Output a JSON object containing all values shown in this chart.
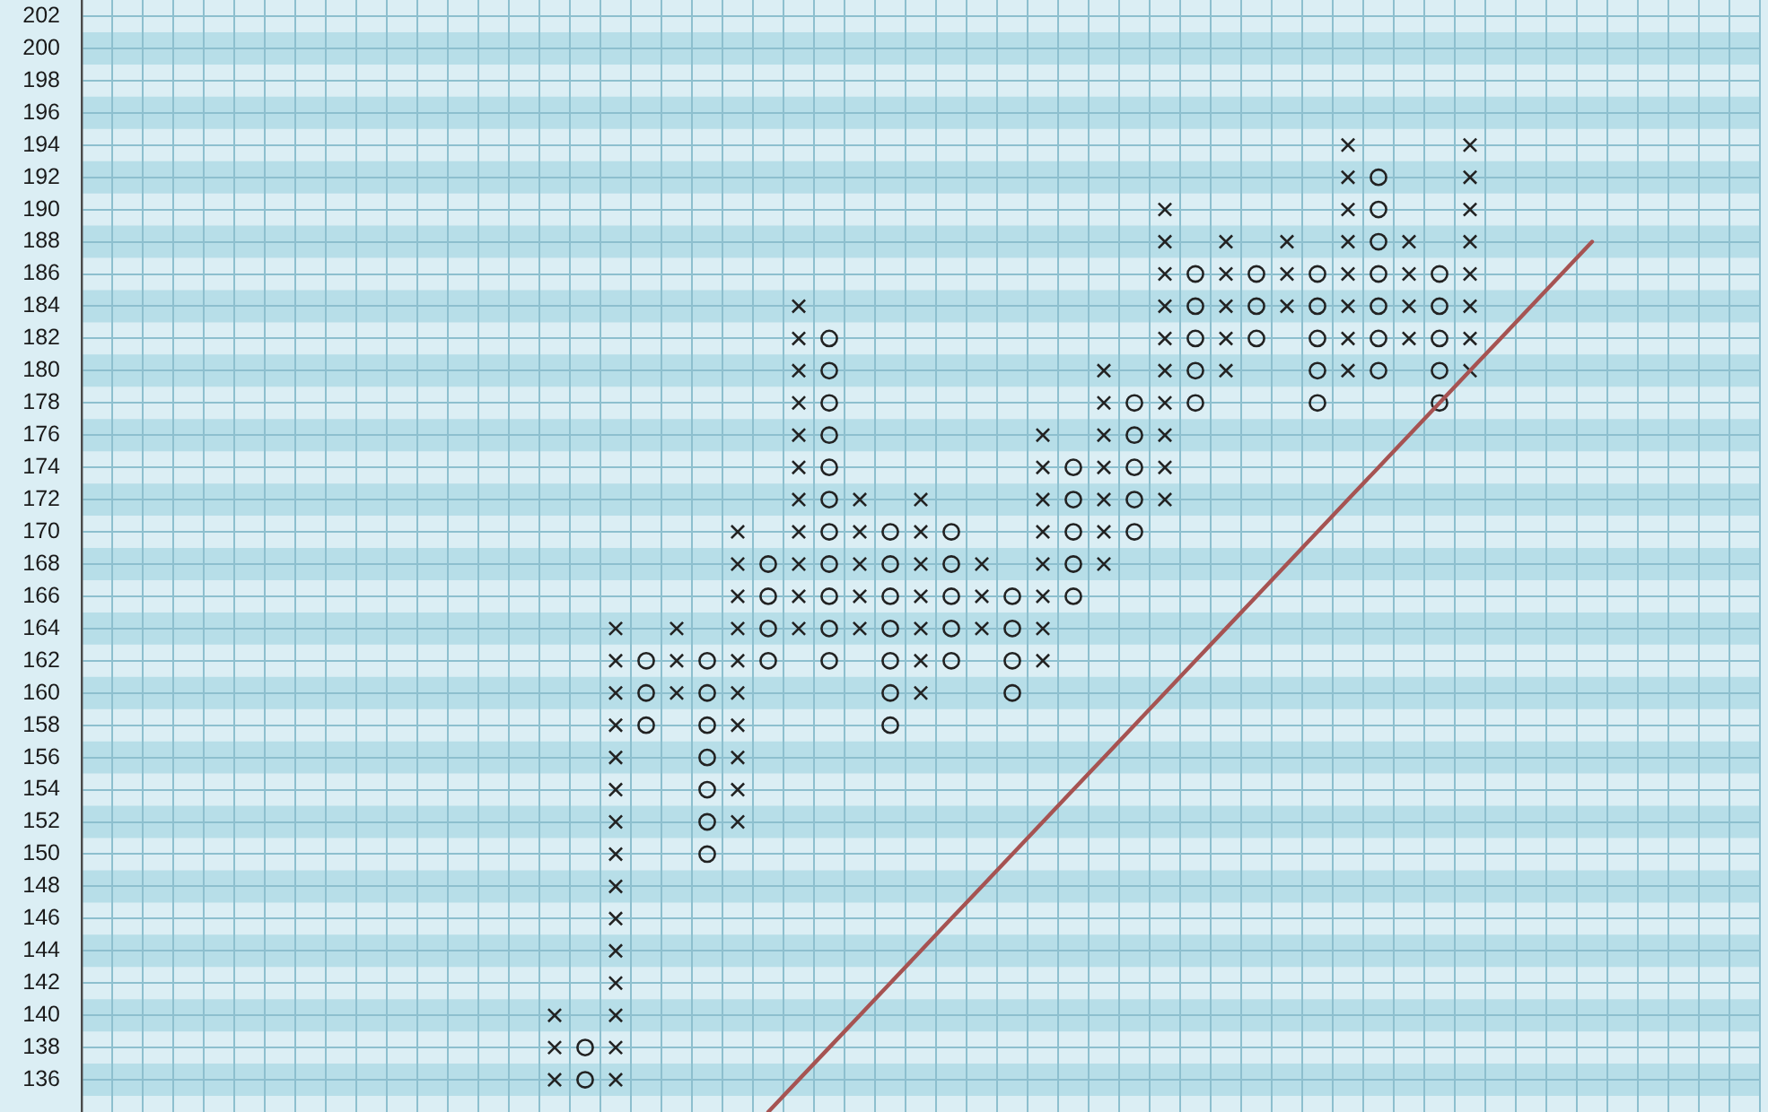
{
  "chart_data": {
    "type": "scatter",
    "categories": [
      null,
      null,
      null,
      null,
      null,
      null,
      null,
      null,
      null,
      null,
      null,
      null,
      null,
      null,
      null,
      null,
      null,
      null,
      null,
      null,
      null,
      null,
      null,
      null,
      null,
      null,
      null,
      null,
      null,
      null,
      null,
      null,
      null,
      null,
      null,
      null,
      null,
      null,
      null,
      null,
      null,
      null,
      null,
      null,
      null,
      null,
      null,
      null,
      null,
      null,
      null,
      null,
      null,
      null,
      null
    ],
    "series": [
      {
        "color": "#222222",
        "marker": "cross",
        "values": [
          null,
          null,
          null,
          null,
          null,
          null,
          null,
          null,
          null,
          null,
          null,
          null,
          null,
          null,
          null,
          136,
          null,
          136,
          null,
          160,
          null,
          152,
          null,
          164,
          null,
          164,
          null,
          160,
          null,
          164,
          null,
          162,
          null,
          168,
          null,
          172,
          null,
          180,
          null,
          184,
          null,
          180,
          null,
          182,
          null,
          180,
          null,
          null,
          null,
          null,
          null,
          null,
          null,
          null,
          null
        ]
      },
      {
        "color": "#222222",
        "marker": "cross",
        "values": [
          null,
          null,
          null,
          null,
          null,
          null,
          null,
          null,
          null,
          null,
          null,
          null,
          null,
          null,
          null,
          138,
          null,
          138,
          null,
          162,
          null,
          154,
          null,
          166,
          null,
          166,
          null,
          162,
          null,
          166,
          null,
          164,
          null,
          170,
          null,
          174,
          null,
          182,
          null,
          186,
          null,
          182,
          null,
          184,
          null,
          182,
          null,
          null,
          null,
          null,
          null,
          null,
          null,
          null,
          null
        ]
      },
      {
        "color": "#222222",
        "marker": "cross",
        "values": [
          null,
          null,
          null,
          null,
          null,
          null,
          null,
          null,
          null,
          null,
          null,
          null,
          null,
          null,
          null,
          140,
          null,
          140,
          null,
          164,
          null,
          156,
          null,
          168,
          null,
          168,
          null,
          164,
          null,
          168,
          null,
          166,
          null,
          172,
          null,
          176,
          null,
          184,
          null,
          188,
          null,
          184,
          null,
          186,
          null,
          184,
          null,
          null,
          null,
          null,
          null,
          null,
          null,
          null,
          null
        ]
      },
      {
        "color": "#222222",
        "marker": "cross",
        "values": [
          null,
          null,
          null,
          null,
          null,
          null,
          null,
          null,
          null,
          null,
          null,
          null,
          null,
          null,
          null,
          null,
          null,
          142,
          null,
          null,
          null,
          158,
          null,
          170,
          null,
          170,
          null,
          166,
          null,
          null,
          null,
          168,
          null,
          174,
          null,
          178,
          null,
          186,
          null,
          null,
          null,
          186,
          null,
          188,
          null,
          186,
          null,
          null,
          null,
          null,
          null,
          null,
          null,
          null,
          null
        ]
      },
      {
        "color": "#222222",
        "marker": "cross",
        "values": [
          null,
          null,
          null,
          null,
          null,
          null,
          null,
          null,
          null,
          null,
          null,
          null,
          null,
          null,
          null,
          null,
          null,
          144,
          null,
          null,
          null,
          160,
          null,
          172,
          null,
          172,
          null,
          168,
          null,
          null,
          null,
          170,
          null,
          176,
          null,
          180,
          null,
          188,
          null,
          null,
          null,
          188,
          null,
          null,
          null,
          188,
          null,
          null,
          null,
          null,
          null,
          null,
          null,
          null,
          null
        ]
      },
      {
        "color": "#222222",
        "marker": "cross",
        "values": [
          null,
          null,
          null,
          null,
          null,
          null,
          null,
          null,
          null,
          null,
          null,
          null,
          null,
          null,
          null,
          null,
          null,
          146,
          null,
          null,
          null,
          162,
          null,
          174,
          null,
          null,
          null,
          170,
          null,
          null,
          null,
          172,
          null,
          178,
          null,
          182,
          null,
          null,
          null,
          null,
          null,
          190,
          null,
          null,
          null,
          190,
          null,
          null,
          null,
          null,
          null,
          null,
          null,
          null,
          null
        ]
      },
      {
        "color": "#222222",
        "marker": "cross",
        "values": [
          null,
          null,
          null,
          null,
          null,
          null,
          null,
          null,
          null,
          null,
          null,
          null,
          null,
          null,
          null,
          null,
          null,
          148,
          null,
          null,
          null,
          164,
          null,
          176,
          null,
          null,
          null,
          172,
          null,
          null,
          null,
          174,
          null,
          180,
          null,
          184,
          null,
          null,
          null,
          null,
          null,
          192,
          null,
          null,
          null,
          192,
          null,
          null,
          null,
          null,
          null,
          null,
          null,
          null,
          null
        ]
      },
      {
        "color": "#222222",
        "marker": "cross",
        "values": [
          null,
          null,
          null,
          null,
          null,
          null,
          null,
          null,
          null,
          null,
          null,
          null,
          null,
          null,
          null,
          null,
          null,
          150,
          null,
          null,
          null,
          166,
          null,
          178,
          null,
          null,
          null,
          null,
          null,
          null,
          null,
          176,
          null,
          null,
          null,
          186,
          null,
          null,
          null,
          null,
          null,
          194,
          null,
          null,
          null,
          194,
          null,
          null,
          null,
          null,
          null,
          null,
          null,
          null,
          null
        ]
      },
      {
        "color": "#222222",
        "marker": "cross",
        "values": [
          null,
          null,
          null,
          null,
          null,
          null,
          null,
          null,
          null,
          null,
          null,
          null,
          null,
          null,
          null,
          null,
          null,
          152,
          null,
          null,
          null,
          168,
          null,
          180,
          null,
          null,
          null,
          null,
          null,
          null,
          null,
          null,
          null,
          null,
          null,
          188,
          null,
          null,
          null,
          null,
          null,
          null,
          null,
          null,
          null,
          null,
          null,
          null,
          null,
          null,
          null,
          null,
          null,
          null,
          null
        ]
      },
      {
        "color": "#222222",
        "marker": "cross",
        "values": [
          null,
          null,
          null,
          null,
          null,
          null,
          null,
          null,
          null,
          null,
          null,
          null,
          null,
          null,
          null,
          null,
          null,
          154,
          null,
          null,
          null,
          170,
          null,
          182,
          null,
          null,
          null,
          null,
          null,
          null,
          null,
          null,
          null,
          null,
          null,
          190,
          null,
          null,
          null,
          null,
          null,
          null,
          null,
          null,
          null,
          null,
          null,
          null,
          null,
          null,
          null,
          null,
          null,
          null,
          null
        ]
      },
      {
        "color": "#222222",
        "marker": "cross",
        "values": [
          null,
          null,
          null,
          null,
          null,
          null,
          null,
          null,
          null,
          null,
          null,
          null,
          null,
          null,
          null,
          null,
          null,
          156,
          null,
          null,
          null,
          null,
          null,
          184,
          null,
          null,
          null,
          null,
          null,
          null,
          null,
          null,
          null,
          null,
          null,
          null,
          null,
          null,
          null,
          null,
          null,
          null,
          null,
          null,
          null,
          null,
          null,
          null,
          null,
          null,
          null,
          null,
          null,
          null,
          null
        ]
      },
      {
        "color": "#222222",
        "marker": "cross",
        "values": [
          null,
          null,
          null,
          null,
          null,
          null,
          null,
          null,
          null,
          null,
          null,
          null,
          null,
          null,
          null,
          null,
          null,
          158,
          null,
          null,
          null,
          null,
          null,
          null,
          null,
          null,
          null,
          null,
          null,
          null,
          null,
          null,
          null,
          null,
          null,
          null,
          null,
          null,
          null,
          null,
          null,
          null,
          null,
          null,
          null,
          null,
          null,
          null,
          null,
          null,
          null,
          null,
          null,
          null,
          null
        ]
      },
      {
        "color": "#222222",
        "marker": "cross",
        "values": [
          null,
          null,
          null,
          null,
          null,
          null,
          null,
          null,
          null,
          null,
          null,
          null,
          null,
          null,
          null,
          null,
          null,
          160,
          null,
          null,
          null,
          null,
          null,
          null,
          null,
          null,
          null,
          null,
          null,
          null,
          null,
          null,
          null,
          null,
          null,
          null,
          null,
          null,
          null,
          null,
          null,
          null,
          null,
          null,
          null,
          null,
          null,
          null,
          null,
          null,
          null,
          null,
          null,
          null,
          null
        ]
      },
      {
        "color": "#222222",
        "marker": "cross",
        "values": [
          null,
          null,
          null,
          null,
          null,
          null,
          null,
          null,
          null,
          null,
          null,
          null,
          null,
          null,
          null,
          null,
          null,
          162,
          null,
          null,
          null,
          null,
          null,
          null,
          null,
          null,
          null,
          null,
          null,
          null,
          null,
          null,
          null,
          null,
          null,
          null,
          null,
          null,
          null,
          null,
          null,
          null,
          null,
          null,
          null,
          null,
          null,
          null,
          null,
          null,
          null,
          null,
          null,
          null,
          null
        ]
      },
      {
        "color": "#222222",
        "marker": "cross",
        "values": [
          null,
          null,
          null,
          null,
          null,
          null,
          null,
          null,
          null,
          null,
          null,
          null,
          null,
          null,
          null,
          null,
          null,
          164,
          null,
          null,
          null,
          null,
          null,
          null,
          null,
          null,
          null,
          null,
          null,
          null,
          null,
          null,
          null,
          null,
          null,
          null,
          null,
          null,
          null,
          null,
          null,
          null,
          null,
          null,
          null,
          null,
          null,
          null,
          null,
          null,
          null,
          null,
          null,
          null,
          null
        ]
      },
      {
        "color": "#222222",
        "marker": "circle",
        "values": [
          null,
          null,
          null,
          null,
          null,
          null,
          null,
          null,
          null,
          null,
          null,
          null,
          null,
          null,
          null,
          null,
          136,
          null,
          158,
          null,
          150,
          null,
          162,
          null,
          162,
          null,
          158,
          null,
          162,
          null,
          160,
          null,
          166,
          null,
          170,
          null,
          178,
          null,
          182,
          null,
          178,
          null,
          180,
          null,
          178,
          null,
          null,
          null,
          null,
          null,
          null,
          null,
          null,
          null,
          null
        ]
      },
      {
        "color": "#222222",
        "marker": "circle",
        "values": [
          null,
          null,
          null,
          null,
          null,
          null,
          null,
          null,
          null,
          null,
          null,
          null,
          null,
          null,
          null,
          null,
          138,
          null,
          160,
          null,
          152,
          null,
          164,
          null,
          164,
          null,
          160,
          null,
          164,
          null,
          162,
          null,
          168,
          null,
          172,
          null,
          180,
          null,
          184,
          null,
          180,
          null,
          182,
          null,
          180,
          null,
          null,
          null,
          null,
          null,
          null,
          null,
          null,
          null,
          null
        ]
      },
      {
        "color": "#222222",
        "marker": "circle",
        "values": [
          null,
          null,
          null,
          null,
          null,
          null,
          null,
          null,
          null,
          null,
          null,
          null,
          null,
          null,
          null,
          null,
          null,
          null,
          162,
          null,
          154,
          null,
          166,
          null,
          166,
          null,
          162,
          null,
          166,
          null,
          164,
          null,
          170,
          null,
          174,
          null,
          182,
          null,
          186,
          null,
          182,
          null,
          184,
          null,
          182,
          null,
          null,
          null,
          null,
          null,
          null,
          null,
          null,
          null,
          null
        ]
      },
      {
        "color": "#222222",
        "marker": "circle",
        "values": [
          null,
          null,
          null,
          null,
          null,
          null,
          null,
          null,
          null,
          null,
          null,
          null,
          null,
          null,
          null,
          null,
          null,
          null,
          null,
          null,
          156,
          null,
          168,
          null,
          168,
          null,
          164,
          null,
          168,
          null,
          166,
          null,
          172,
          null,
          176,
          null,
          184,
          null,
          null,
          null,
          184,
          null,
          186,
          null,
          184,
          null,
          null,
          null,
          null,
          null,
          null,
          null,
          null,
          null,
          null
        ]
      },
      {
        "color": "#222222",
        "marker": "circle",
        "values": [
          null,
          null,
          null,
          null,
          null,
          null,
          null,
          null,
          null,
          null,
          null,
          null,
          null,
          null,
          null,
          null,
          null,
          null,
          null,
          null,
          158,
          null,
          null,
          null,
          170,
          null,
          166,
          null,
          170,
          null,
          null,
          null,
          174,
          null,
          178,
          null,
          186,
          null,
          null,
          null,
          186,
          null,
          188,
          null,
          186,
          null,
          null,
          null,
          null,
          null,
          null,
          null,
          null,
          null,
          null
        ]
      },
      {
        "color": "#222222",
        "marker": "circle",
        "values": [
          null,
          null,
          null,
          null,
          null,
          null,
          null,
          null,
          null,
          null,
          null,
          null,
          null,
          null,
          null,
          null,
          null,
          null,
          null,
          null,
          160,
          null,
          null,
          null,
          172,
          null,
          168,
          null,
          null,
          null,
          null,
          null,
          null,
          null,
          null,
          null,
          null,
          null,
          null,
          null,
          null,
          null,
          190,
          null,
          null,
          null,
          null,
          null,
          null,
          null,
          null,
          null,
          null,
          null,
          null
        ]
      },
      {
        "color": "#222222",
        "marker": "circle",
        "values": [
          null,
          null,
          null,
          null,
          null,
          null,
          null,
          null,
          null,
          null,
          null,
          null,
          null,
          null,
          null,
          null,
          null,
          null,
          null,
          null,
          162,
          null,
          null,
          null,
          174,
          null,
          170,
          null,
          null,
          null,
          null,
          null,
          null,
          null,
          null,
          null,
          null,
          null,
          null,
          null,
          null,
          null,
          192,
          null,
          null,
          null,
          null,
          null,
          null,
          null,
          null,
          null,
          null,
          null,
          null
        ]
      },
      {
        "color": "#222222",
        "marker": "circle",
        "values": [
          null,
          null,
          null,
          null,
          null,
          null,
          null,
          null,
          null,
          null,
          null,
          null,
          null,
          null,
          null,
          null,
          null,
          null,
          null,
          null,
          null,
          null,
          null,
          null,
          176,
          null,
          null,
          null,
          null,
          null,
          null,
          null,
          null,
          null,
          null,
          null,
          null,
          null,
          null,
          null,
          null,
          null,
          null,
          null,
          null,
          null,
          null,
          null,
          null,
          null,
          null,
          null,
          null,
          null,
          null
        ]
      },
      {
        "color": "#222222",
        "marker": "circle",
        "values": [
          null,
          null,
          null,
          null,
          null,
          null,
          null,
          null,
          null,
          null,
          null,
          null,
          null,
          null,
          null,
          null,
          null,
          null,
          null,
          null,
          null,
          null,
          null,
          null,
          178,
          null,
          null,
          null,
          null,
          null,
          null,
          null,
          null,
          null,
          null,
          null,
          null,
          null,
          null,
          null,
          null,
          null,
          null,
          null,
          null,
          null,
          null,
          null,
          null,
          null,
          null,
          null,
          null,
          null,
          null
        ]
      },
      {
        "color": "#222222",
        "marker": "circle",
        "values": [
          null,
          null,
          null,
          null,
          null,
          null,
          null,
          null,
          null,
          null,
          null,
          null,
          null,
          null,
          null,
          null,
          null,
          null,
          null,
          null,
          null,
          null,
          null,
          null,
          180,
          null,
          null,
          null,
          null,
          null,
          null,
          null,
          null,
          null,
          null,
          null,
          null,
          null,
          null,
          null,
          null,
          null,
          null,
          null,
          null,
          null,
          null,
          null,
          null,
          null,
          null,
          null,
          null,
          null,
          null
        ]
      },
      {
        "color": "#222222",
        "marker": "circle",
        "values": [
          null,
          null,
          null,
          null,
          null,
          null,
          null,
          null,
          null,
          null,
          null,
          null,
          null,
          null,
          null,
          null,
          null,
          null,
          null,
          null,
          null,
          null,
          null,
          null,
          182,
          null,
          null,
          null,
          null,
          null,
          null,
          null,
          null,
          null,
          null,
          null,
          null,
          null,
          null,
          null,
          null,
          null,
          null,
          null,
          null,
          null,
          null,
          null,
          null,
          null,
          null,
          null,
          null,
          null,
          null
        ]
      },
      {
        "type": "line",
        "color": "#a65352",
        "marker": "none",
        "values": [
          null,
          null,
          null,
          null,
          null,
          null,
          null,
          null,
          null,
          null,
          null,
          null,
          null,
          null,
          null,
          null,
          null,
          null,
          null,
          null,
          null,
          null,
          134,
          136,
          138,
          140,
          142,
          144,
          146,
          148,
          150,
          152,
          154,
          156,
          158,
          160,
          162,
          164,
          166,
          168,
          170,
          172,
          174,
          176,
          178,
          180,
          182,
          184,
          186,
          188,
          null,
          null,
          null,
          null,
          null
        ]
      }
    ],
    "ylim": [
      134,
      203
    ],
    "yticks": [
      136,
      138,
      140,
      142,
      144,
      146,
      148,
      150,
      152,
      154,
      156,
      158,
      160,
      162,
      164,
      166,
      168,
      170,
      172,
      174,
      176,
      178,
      180,
      182,
      184,
      186,
      188,
      190,
      192,
      194,
      196,
      198,
      200,
      202
    ],
    "tick_labels": "y",
    "grid": true,
    "bands": [
      {
        "axis": "y",
        "from": 135,
        "to": 137,
        "color": "#b7dee8"
      },
      {
        "axis": "y",
        "from": 139,
        "to": 141,
        "color": "#b7dee8"
      },
      {
        "axis": "y",
        "from": 143,
        "to": 145,
        "color": "#b7dee8"
      },
      {
        "axis": "y",
        "from": 147,
        "to": 149,
        "color": "#b7dee8"
      },
      {
        "axis": "y",
        "from": 151,
        "to": 153,
        "color": "#b7dee8"
      },
      {
        "axis": "y",
        "from": 155,
        "to": 157,
        "color": "#b7dee8"
      },
      {
        "axis": "y",
        "from": 159,
        "to": 161,
        "color": "#b7dee8"
      },
      {
        "axis": "y",
        "from": 163,
        "to": 165,
        "color": "#b7dee8"
      },
      {
        "axis": "y",
        "from": 167,
        "to": 169,
        "color": "#b7dee8"
      },
      {
        "axis": "y",
        "from": 171,
        "to": 173,
        "color": "#b7dee8"
      },
      {
        "axis": "y",
        "from": 175,
        "to": 177,
        "color": "#b7dee8"
      },
      {
        "axis": "y",
        "from": 179,
        "to": 181,
        "color": "#b7dee8"
      },
      {
        "axis": "y",
        "from": 183,
        "to": 185,
        "color": "#b7dee8"
      },
      {
        "axis": "y",
        "from": 187,
        "to": 189,
        "color": "#b7dee8"
      },
      {
        "axis": "y",
        "from": 191,
        "to": 193,
        "color": "#b7dee8"
      },
      {
        "axis": "y",
        "from": 195,
        "to": 197,
        "color": "#b7dee8"
      },
      {
        "axis": "y",
        "from": 199,
        "to": 201,
        "color": "#b7dee8"
      }
    ]
  }
}
